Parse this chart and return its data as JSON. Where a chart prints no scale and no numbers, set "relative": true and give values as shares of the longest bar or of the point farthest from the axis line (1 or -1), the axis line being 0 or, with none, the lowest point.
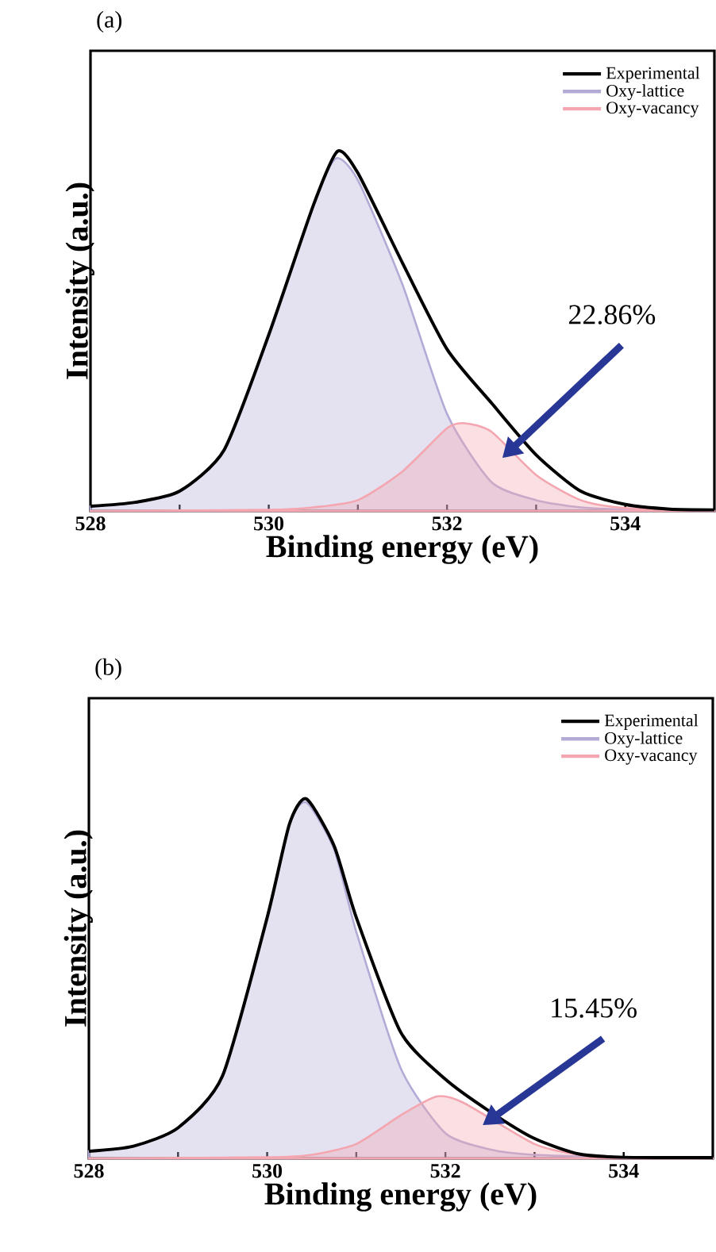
{
  "chart_data": [
    {
      "type": "line",
      "title": "(a)",
      "xlabel": "Binding energy (eV)",
      "ylabel": "Intensity (a.u.)",
      "relative": true,
      "legend": "top right",
      "tick_labels": "x",
      "xlim": [
        528,
        535
      ],
      "xticks": [
        528,
        {
          "value": 529,
          "label": null
        },
        530,
        {
          "value": 531,
          "label": null
        },
        532,
        {
          "value": 533,
          "label": null
        },
        534
      ],
      "series": [
        {
          "name": "Experimental",
          "type": "line",
          "color": "#000000",
          "x": [
            528,
            528.5,
            529,
            529.5,
            530,
            530.5,
            530.77,
            531,
            531.5,
            532,
            532.5,
            533,
            533.5,
            534,
            534.5,
            535
          ],
          "values": [
            0.013,
            0.024,
            0.055,
            0.17,
            0.49,
            0.85,
            1.0,
            0.94,
            0.69,
            0.45,
            0.3,
            0.156,
            0.055,
            0.018,
            0.005,
            0.003
          ]
        },
        {
          "name": "Oxy-lattice",
          "type": "area",
          "color": "#b3aad6",
          "x": [
            528,
            528.5,
            529,
            529.5,
            530,
            530.5,
            530.75,
            531,
            531.5,
            532,
            532.5,
            533,
            533.5,
            534,
            535
          ],
          "values": [
            0.013,
            0.024,
            0.055,
            0.17,
            0.49,
            0.85,
            0.98,
            0.92,
            0.63,
            0.27,
            0.08,
            0.03,
            0.01,
            0.004,
            0.0
          ]
        },
        {
          "name": "Oxy-vacancy",
          "type": "area",
          "color": "#f4a6b0",
          "x": [
            528,
            530,
            530.5,
            531,
            531.5,
            532,
            532.2,
            532.5,
            533,
            533.5,
            534,
            535
          ],
          "values": [
            0.0,
            0.003,
            0.01,
            0.03,
            0.11,
            0.23,
            0.244,
            0.22,
            0.1,
            0.03,
            0.008,
            0.0
          ]
        }
      ],
      "annotations": [
        "22.86%"
      ]
    },
    {
      "type": "line",
      "title": "(b)",
      "xlabel": "Binding energy (eV)",
      "ylabel": "Intensity (a.u.)",
      "relative": true,
      "legend": "top right",
      "tick_labels": "x",
      "xlim": [
        528,
        535
      ],
      "xticks": [
        528,
        {
          "value": 529,
          "label": null
        },
        530,
        {
          "value": 531,
          "label": null
        },
        532,
        {
          "value": 533,
          "label": null
        },
        534
      ],
      "series": [
        {
          "name": "Experimental",
          "type": "line",
          "color": "#000000",
          "x": [
            528,
            528.5,
            529,
            529.5,
            530,
            530.25,
            530.44,
            530.75,
            531,
            531.5,
            532,
            532.5,
            533,
            533.5,
            534,
            535
          ],
          "values": [
            0.02,
            0.034,
            0.085,
            0.23,
            0.67,
            0.93,
            1.0,
            0.87,
            0.67,
            0.35,
            0.22,
            0.13,
            0.055,
            0.012,
            0.003,
            0.002
          ]
        },
        {
          "name": "Oxy-lattice",
          "type": "area",
          "color": "#b3aad6",
          "x": [
            528,
            528.5,
            529,
            529.5,
            530,
            530.25,
            530.44,
            530.75,
            531,
            531.5,
            532,
            532.5,
            533,
            534,
            535
          ],
          "values": [
            0.02,
            0.034,
            0.085,
            0.23,
            0.67,
            0.93,
            0.99,
            0.86,
            0.63,
            0.25,
            0.07,
            0.025,
            0.01,
            0.003,
            0.0
          ]
        },
        {
          "name": "Oxy-vacancy",
          "type": "area",
          "color": "#f4a6b0",
          "x": [
            528,
            530,
            530.5,
            531,
            531.5,
            531.9,
            532.2,
            533,
            533.5,
            534,
            535
          ],
          "values": [
            0.0,
            0.003,
            0.01,
            0.04,
            0.12,
            0.172,
            0.155,
            0.04,
            0.01,
            0.0,
            0.0
          ]
        }
      ],
      "annotations": [
        "15.45%"
      ]
    }
  ]
}
